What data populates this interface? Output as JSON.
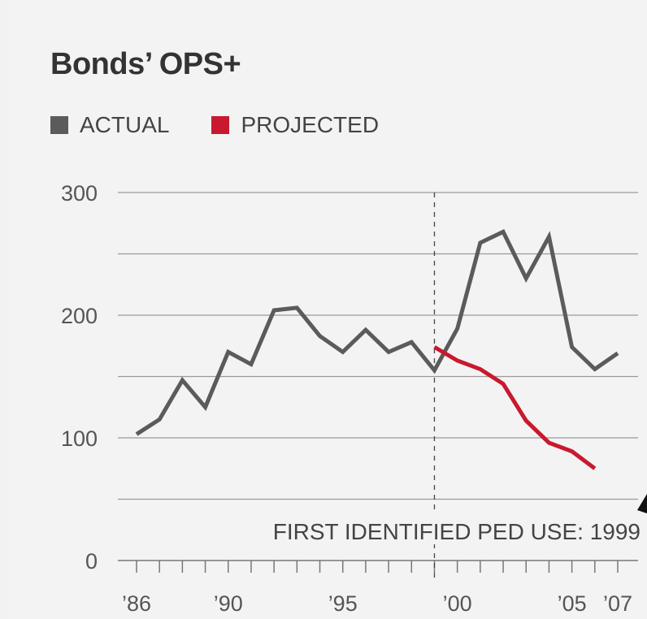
{
  "colors": {
    "actual": "#5b5b5b",
    "projected": "#c8192e",
    "grid": "#9a9a9a",
    "text": "#333333"
  },
  "chart_data": {
    "type": "line",
    "title": "Bonds’ OPS+",
    "legend": [
      {
        "label": "ACTUAL",
        "color": "#5b5b5b"
      },
      {
        "label": "PROJECTED",
        "color": "#c8192e"
      }
    ],
    "x_tick_labels": [
      {
        "year": 1986,
        "label": "’86"
      },
      {
        "year": 1990,
        "label": "’90"
      },
      {
        "year": 1995,
        "label": "’95"
      },
      {
        "year": 2000,
        "label": "’00"
      },
      {
        "year": 2005,
        "label": "’05"
      },
      {
        "year": 2007,
        "label": "’07"
      }
    ],
    "y_tick_labels": [
      {
        "value": 0,
        "label": "0"
      },
      {
        "value": 100,
        "label": "100"
      },
      {
        "value": 200,
        "label": "200"
      },
      {
        "value": 300,
        "label": "300"
      }
    ],
    "ylim": [
      0,
      300
    ],
    "xlim": [
      1986,
      2007
    ],
    "gridlines": [
      50,
      100,
      150,
      200,
      250,
      300
    ],
    "series": [
      {
        "name": "ACTUAL",
        "color": "#5b5b5b",
        "x": [
          1986,
          1987,
          1988,
          1989,
          1990,
          1991,
          1992,
          1993,
          1994,
          1995,
          1996,
          1997,
          1998,
          1999,
          2000,
          2001,
          2002,
          2003,
          2004,
          2005,
          2006,
          2007
        ],
        "y": [
          103,
          115,
          147,
          125,
          170,
          160,
          204,
          206,
          183,
          170,
          188,
          170,
          178,
          155,
          189,
          259,
          268,
          230,
          264,
          174,
          156,
          169
        ]
      },
      {
        "name": "PROJECTED",
        "color": "#c8192e",
        "x": [
          1999,
          2000,
          2001,
          2002,
          2003,
          2004,
          2005,
          2006
        ],
        "y": [
          174,
          163,
          156,
          144,
          114,
          96,
          89,
          75
        ]
      }
    ],
    "annotation": {
      "year": 1999,
      "text": "FIRST IDENTIFIED PED USE: 1999"
    }
  }
}
